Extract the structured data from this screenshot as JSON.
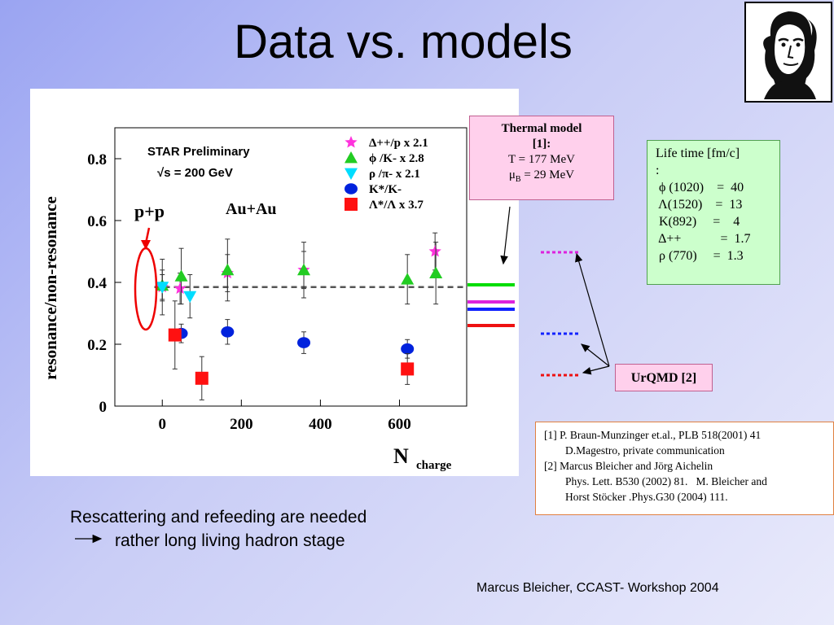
{
  "slide": {
    "title": "Data vs. models",
    "footer": "Marcus Bleicher, CCAST- Workshop 2004",
    "bottom_line1": "Rescattering and refeeding are needed",
    "bottom_line2": "rather long living hadron stage"
  },
  "thermal_box": {
    "line1": "Thermal model",
    "line2": "[1]:",
    "line3": "T = 177 MeV",
    "line4_pre": "μ",
    "line4_sub": "B",
    "line4_post": " = 29 MeV"
  },
  "lifetime_box": {
    "header": "Life time [fm/c]",
    "colon": ":",
    "rows": [
      {
        "text": " ϕ (1020)    =  40"
      },
      {
        "text": " Λ(1520)    =  13"
      },
      {
        "text": " K(892)     =    4"
      },
      {
        "text": " Δ++            =  1.7"
      },
      {
        "text": " ρ (770)     =  1.3"
      }
    ]
  },
  "urqmd_box": {
    "label": "UrQMD [2]"
  },
  "refs": {
    "r1a": "[1] P. Braun-Munzinger et.al., PLB 518(2001) 41",
    "r1b": "D.Magestro, private communication",
    "r2a": "[2] Marcus Bleicher and Jörg Aichelin",
    "r2b": "Phys. Lett. B530 (2002) 81.   M. Bleicher and",
    "r2c": "Horst Stöcker .Phys.G30 (2004) 111."
  },
  "colors": {
    "delta": "#ff33dd",
    "phi": "#22cc22",
    "rho": "#00ddff",
    "kstar": "#0022dd",
    "lambda": "#ff1111",
    "thermal_green": "#00dd00",
    "thermal_magenta": "#dd22dd",
    "thermal_blue": "#1122ff",
    "thermal_red": "#ee1111"
  },
  "chart_data": {
    "type": "scatter",
    "ylabel": "resonance/non-resonance",
    "xlabel": "N",
    "xlabel_sub": "charge",
    "annotation1": "STAR Preliminary",
    "annotation2": "√s = 200 GeV",
    "annotation_pp": "p+p",
    "annotation_auau": "Au+Au",
    "xlim": [
      -120,
      770
    ],
    "ylim": [
      0,
      0.9
    ],
    "x_ticks": [
      0,
      200,
      400,
      600
    ],
    "y_ticks": [
      0,
      0.2,
      0.4,
      0.6,
      0.8
    ],
    "y_tick_labels": [
      "0",
      "0.2",
      "0.4",
      "0.6",
      "0.8"
    ],
    "reference_line": 0.385,
    "series": [
      {
        "name": "Δ++/p  x 2.1",
        "marker": "star",
        "color": "#ff33dd",
        "points": [
          {
            "x": 0,
            "y": 0.385,
            "err": 0.09
          },
          {
            "x": 45,
            "y": 0.38,
            "err": 0.05
          },
          {
            "x": 165,
            "y": 0.43,
            "err": 0.06
          },
          {
            "x": 358,
            "y": 0.44,
            "err": 0.06
          },
          {
            "x": 690,
            "y": 0.5,
            "err": 0.06
          }
        ]
      },
      {
        "name": "ϕ /K-  x 2.8",
        "marker": "triangle-up",
        "color": "#22cc22",
        "points": [
          {
            "x": 0,
            "y": 0.39,
            "err": 0.05
          },
          {
            "x": 48,
            "y": 0.42,
            "err": 0.09
          },
          {
            "x": 165,
            "y": 0.44,
            "err": 0.1
          },
          {
            "x": 358,
            "y": 0.44,
            "err": 0.09
          },
          {
            "x": 620,
            "y": 0.41,
            "err": 0.08
          },
          {
            "x": 692,
            "y": 0.43,
            "err": 0.1
          }
        ]
      },
      {
        "name": "ρ /π-  x 2.1",
        "marker": "triangle-down",
        "color": "#00ddff",
        "points": [
          {
            "x": 0,
            "y": 0.385,
            "err": 0.04
          },
          {
            "x": 70,
            "y": 0.355,
            "err": 0.07
          }
        ]
      },
      {
        "name": "K*/K-",
        "marker": "circle",
        "color": "#0022dd",
        "points": [
          {
            "x": 48,
            "y": 0.235,
            "err": 0.03
          },
          {
            "x": 165,
            "y": 0.24,
            "err": 0.04
          },
          {
            "x": 358,
            "y": 0.205,
            "err": 0.035
          },
          {
            "x": 620,
            "y": 0.185,
            "err": 0.03
          }
        ]
      },
      {
        "name": "Λ*/Λ  x 3.7",
        "marker": "square",
        "color": "#ff1111",
        "points": [
          {
            "x": 32,
            "y": 0.23,
            "err": 0.11
          },
          {
            "x": 100,
            "y": 0.09,
            "err": 0.07
          },
          {
            "x": 620,
            "y": 0.12,
            "err": 0.05
          }
        ]
      }
    ]
  }
}
